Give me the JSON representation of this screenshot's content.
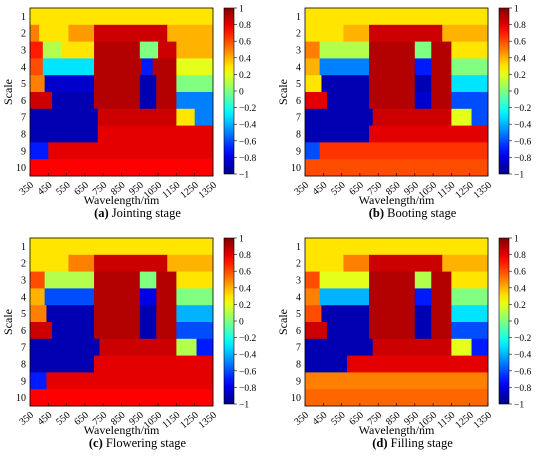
{
  "chart_data": [
    {
      "type": "heatmap",
      "caption_letter": "(a)",
      "caption_text": "Jointing stage",
      "xlabel": "Wavelength/nm",
      "ylabel": "Scale",
      "x_ticks": [
        350,
        450,
        550,
        650,
        750,
        850,
        950,
        1050,
        1150,
        1250,
        1350
      ],
      "y_ticks": [
        1,
        2,
        3,
        4,
        5,
        6,
        7,
        8,
        9,
        10
      ],
      "xlim": [
        350,
        1350
      ],
      "zlim": [
        -1,
        1
      ],
      "colorbar_ticks": [
        1,
        0.8,
        0.6,
        0.4,
        0.2,
        0,
        -0.2,
        -0.4,
        -0.6,
        -0.8,
        -1
      ],
      "colormap": "jet",
      "rows": [
        {
          "scale": 1,
          "segments": [
            [
              350,
              1350,
              0.3
            ]
          ]
        },
        {
          "scale": 2,
          "segments": [
            [
              350,
              400,
              0.5
            ],
            [
              400,
              560,
              0.3
            ],
            [
              560,
              700,
              0.45
            ],
            [
              700,
              1100,
              0.85
            ],
            [
              1100,
              1350,
              0.4
            ]
          ]
        },
        {
          "scale": 3,
          "segments": [
            [
              350,
              420,
              0.7
            ],
            [
              420,
              520,
              0.1
            ],
            [
              520,
              700,
              0.3
            ],
            [
              700,
              950,
              0.9
            ],
            [
              950,
              1050,
              0.0
            ],
            [
              1050,
              1150,
              0.85
            ],
            [
              1150,
              1350,
              0.4
            ]
          ]
        },
        {
          "scale": 4,
          "segments": [
            [
              350,
              420,
              0.6
            ],
            [
              420,
              700,
              -0.3
            ],
            [
              700,
              960,
              0.9
            ],
            [
              960,
              1020,
              -0.7
            ],
            [
              1020,
              1150,
              0.9
            ],
            [
              1150,
              1350,
              0.2
            ]
          ]
        },
        {
          "scale": 5,
          "segments": [
            [
              350,
              430,
              0.5
            ],
            [
              430,
              700,
              -0.85
            ],
            [
              700,
              950,
              0.9
            ],
            [
              950,
              1040,
              -0.9
            ],
            [
              1040,
              1150,
              0.9
            ],
            [
              1150,
              1350,
              0.0
            ]
          ]
        },
        {
          "scale": 6,
          "segments": [
            [
              350,
              470,
              0.85
            ],
            [
              470,
              700,
              -0.9
            ],
            [
              700,
              950,
              0.9
            ],
            [
              950,
              1040,
              -0.9
            ],
            [
              1040,
              1150,
              0.9
            ],
            [
              1150,
              1350,
              -0.5
            ]
          ]
        },
        {
          "scale": 7,
          "segments": [
            [
              350,
              720,
              -0.9
            ],
            [
              720,
              1150,
              0.85
            ],
            [
              1150,
              1250,
              0.3
            ],
            [
              1250,
              1350,
              -0.5
            ]
          ]
        },
        {
          "scale": 8,
          "segments": [
            [
              350,
              720,
              -0.9
            ],
            [
              720,
              1350,
              0.8
            ]
          ]
        },
        {
          "scale": 9,
          "segments": [
            [
              350,
              450,
              -0.7
            ],
            [
              450,
              1350,
              0.8
            ]
          ]
        },
        {
          "scale": 10,
          "segments": [
            [
              350,
              1350,
              0.75
            ]
          ]
        }
      ]
    },
    {
      "type": "heatmap",
      "caption_letter": "(b)",
      "caption_text": "Booting stage",
      "xlabel": "Wavelength/nm",
      "ylabel": "Scale",
      "x_ticks": [
        350,
        450,
        550,
        650,
        750,
        850,
        950,
        1050,
        1150,
        1250,
        1350
      ],
      "y_ticks": [
        1,
        2,
        3,
        4,
        5,
        6,
        7,
        8,
        9,
        10
      ],
      "xlim": [
        350,
        1350
      ],
      "zlim": [
        -1,
        1
      ],
      "colorbar_ticks": [
        1,
        0.8,
        0.6,
        0.4,
        0.2,
        0,
        -0.2,
        -0.4,
        -0.6,
        -0.8,
        -1
      ],
      "colormap": "jet",
      "rows": [
        {
          "scale": 1,
          "segments": [
            [
              350,
              1350,
              0.3
            ]
          ]
        },
        {
          "scale": 2,
          "segments": [
            [
              350,
              560,
              0.3
            ],
            [
              560,
              700,
              0.4
            ],
            [
              700,
              1100,
              0.85
            ],
            [
              1100,
              1350,
              0.4
            ]
          ]
        },
        {
          "scale": 3,
          "segments": [
            [
              350,
              430,
              0.5
            ],
            [
              430,
              700,
              0.1
            ],
            [
              700,
              950,
              0.9
            ],
            [
              950,
              1040,
              0.0
            ],
            [
              1040,
              1150,
              0.9
            ],
            [
              1150,
              1350,
              0.3
            ]
          ]
        },
        {
          "scale": 4,
          "segments": [
            [
              350,
              430,
              0.4
            ],
            [
              430,
              700,
              -0.5
            ],
            [
              700,
              950,
              0.9
            ],
            [
              950,
              1040,
              -0.7
            ],
            [
              1040,
              1150,
              0.9
            ],
            [
              1150,
              1350,
              0.0
            ]
          ]
        },
        {
          "scale": 5,
          "segments": [
            [
              350,
              440,
              0.3
            ],
            [
              440,
              700,
              -0.9
            ],
            [
              700,
              950,
              0.9
            ],
            [
              950,
              1040,
              -0.9
            ],
            [
              1040,
              1150,
              0.9
            ],
            [
              1150,
              1350,
              -0.3
            ]
          ]
        },
        {
          "scale": 6,
          "segments": [
            [
              350,
              470,
              0.8
            ],
            [
              470,
              700,
              -0.9
            ],
            [
              700,
              950,
              0.9
            ],
            [
              950,
              1040,
              -0.85
            ],
            [
              1040,
              1150,
              0.9
            ],
            [
              1150,
              1350,
              -0.6
            ]
          ]
        },
        {
          "scale": 7,
          "segments": [
            [
              350,
              720,
              -0.9
            ],
            [
              720,
              1150,
              0.85
            ],
            [
              1150,
              1260,
              0.2
            ],
            [
              1260,
              1350,
              -0.6
            ]
          ]
        },
        {
          "scale": 8,
          "segments": [
            [
              350,
              700,
              -0.9
            ],
            [
              700,
              1350,
              0.8
            ]
          ]
        },
        {
          "scale": 9,
          "segments": [
            [
              350,
              430,
              -0.6
            ],
            [
              430,
              1350,
              0.65
            ]
          ]
        },
        {
          "scale": 10,
          "segments": [
            [
              350,
              1350,
              0.6
            ]
          ]
        }
      ]
    },
    {
      "type": "heatmap",
      "caption_letter": "(c)",
      "caption_text": "Flowering stage",
      "xlabel": "Wavelength/nm",
      "ylabel": "Scale",
      "x_ticks": [
        350,
        450,
        550,
        650,
        750,
        850,
        950,
        1050,
        1150,
        1250,
        1350
      ],
      "y_ticks": [
        1,
        2,
        3,
        4,
        5,
        6,
        7,
        8,
        9,
        10
      ],
      "xlim": [
        350,
        1350
      ],
      "zlim": [
        -1,
        1
      ],
      "colorbar_ticks": [
        1,
        0.8,
        0.6,
        0.4,
        0.2,
        0,
        -0.2,
        -0.4,
        -0.6,
        -0.8,
        -1
      ],
      "colormap": "jet",
      "rows": [
        {
          "scale": 1,
          "segments": [
            [
              350,
              1350,
              0.3
            ]
          ]
        },
        {
          "scale": 2,
          "segments": [
            [
              350,
              560,
              0.3
            ],
            [
              560,
              700,
              0.5
            ],
            [
              700,
              1100,
              0.85
            ],
            [
              1100,
              1350,
              0.4
            ]
          ]
        },
        {
          "scale": 3,
          "segments": [
            [
              350,
              430,
              0.6
            ],
            [
              430,
              700,
              0.1
            ],
            [
              700,
              950,
              0.9
            ],
            [
              950,
              1040,
              0.0
            ],
            [
              1040,
              1150,
              0.9
            ],
            [
              1150,
              1350,
              0.3
            ]
          ]
        },
        {
          "scale": 4,
          "segments": [
            [
              350,
              430,
              0.4
            ],
            [
              430,
              700,
              -0.6
            ],
            [
              700,
              950,
              0.9
            ],
            [
              950,
              1040,
              -0.8
            ],
            [
              1040,
              1150,
              0.9
            ],
            [
              1150,
              1350,
              0.0
            ]
          ]
        },
        {
          "scale": 5,
          "segments": [
            [
              350,
              440,
              0.5
            ],
            [
              440,
              700,
              -0.9
            ],
            [
              700,
              950,
              0.9
            ],
            [
              950,
              1040,
              -0.9
            ],
            [
              1040,
              1150,
              0.9
            ],
            [
              1150,
              1350,
              -0.4
            ]
          ]
        },
        {
          "scale": 6,
          "segments": [
            [
              350,
              470,
              0.85
            ],
            [
              470,
              700,
              -0.9
            ],
            [
              700,
              950,
              0.9
            ],
            [
              950,
              1040,
              -0.9
            ],
            [
              1040,
              1150,
              0.9
            ],
            [
              1150,
              1350,
              -0.6
            ]
          ]
        },
        {
          "scale": 7,
          "segments": [
            [
              350,
              730,
              -0.9
            ],
            [
              730,
              1150,
              0.85
            ],
            [
              1150,
              1260,
              0.1
            ],
            [
              1260,
              1350,
              -0.7
            ]
          ]
        },
        {
          "scale": 8,
          "segments": [
            [
              350,
              700,
              -0.9
            ],
            [
              700,
              1350,
              0.8
            ]
          ]
        },
        {
          "scale": 9,
          "segments": [
            [
              350,
              440,
              -0.7
            ],
            [
              440,
              1350,
              0.8
            ]
          ]
        },
        {
          "scale": 10,
          "segments": [
            [
              350,
              1350,
              0.75
            ]
          ]
        }
      ]
    },
    {
      "type": "heatmap",
      "caption_letter": "(d)",
      "caption_text": "Filling stage",
      "xlabel": "Wavelength/nm",
      "ylabel": "Scale",
      "x_ticks": [
        350,
        450,
        550,
        650,
        750,
        850,
        950,
        1050,
        1150,
        1250,
        1350
      ],
      "y_ticks": [
        1,
        2,
        3,
        4,
        5,
        6,
        7,
        8,
        9,
        10
      ],
      "xlim": [
        350,
        1350
      ],
      "zlim": [
        -1,
        1
      ],
      "colorbar_ticks": [
        1,
        0.8,
        0.6,
        0.4,
        0.2,
        0,
        -0.2,
        -0.4,
        -0.6,
        -0.8,
        -1
      ],
      "colormap": "jet",
      "rows": [
        {
          "scale": 1,
          "segments": [
            [
              350,
              1350,
              0.3
            ]
          ]
        },
        {
          "scale": 2,
          "segments": [
            [
              350,
              560,
              0.3
            ],
            [
              560,
              700,
              0.5
            ],
            [
              700,
              1100,
              0.85
            ],
            [
              1100,
              1350,
              0.4
            ]
          ]
        },
        {
          "scale": 3,
          "segments": [
            [
              350,
              430,
              0.6
            ],
            [
              430,
              700,
              0.2
            ],
            [
              700,
              950,
              0.9
            ],
            [
              950,
              1040,
              0.1
            ],
            [
              1040,
              1150,
              0.9
            ],
            [
              1150,
              1350,
              0.3
            ]
          ]
        },
        {
          "scale": 4,
          "segments": [
            [
              350,
              430,
              0.5
            ],
            [
              430,
              700,
              -0.4
            ],
            [
              700,
              950,
              0.9
            ],
            [
              950,
              1040,
              -0.7
            ],
            [
              1040,
              1150,
              0.9
            ],
            [
              1150,
              1350,
              0.0
            ]
          ]
        },
        {
          "scale": 5,
          "segments": [
            [
              350,
              440,
              0.6
            ],
            [
              440,
              700,
              -0.9
            ],
            [
              700,
              950,
              0.9
            ],
            [
              950,
              1040,
              -0.9
            ],
            [
              1040,
              1150,
              0.9
            ],
            [
              1150,
              1350,
              -0.3
            ]
          ]
        },
        {
          "scale": 6,
          "segments": [
            [
              350,
              470,
              0.85
            ],
            [
              470,
              700,
              -0.9
            ],
            [
              700,
              950,
              0.9
            ],
            [
              950,
              1040,
              -0.9
            ],
            [
              1040,
              1150,
              0.9
            ],
            [
              1150,
              1350,
              -0.6
            ]
          ]
        },
        {
          "scale": 7,
          "segments": [
            [
              350,
              720,
              -0.9
            ],
            [
              720,
              1150,
              0.85
            ],
            [
              1150,
              1260,
              0.2
            ],
            [
              1260,
              1350,
              -0.7
            ]
          ]
        },
        {
          "scale": 8,
          "segments": [
            [
              350,
              580,
              -0.9
            ],
            [
              580,
              1350,
              0.8
            ]
          ]
        },
        {
          "scale": 9,
          "segments": [
            [
              350,
              1350,
              0.5
            ]
          ]
        },
        {
          "scale": 10,
          "segments": [
            [
              350,
              1350,
              0.55
            ]
          ]
        }
      ]
    }
  ]
}
